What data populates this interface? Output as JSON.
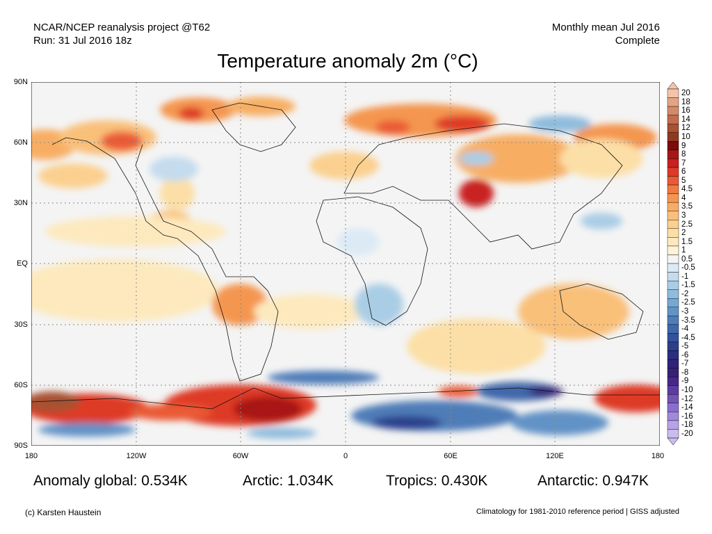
{
  "header": {
    "left_line1": "NCAR/NCEP reanalysis project @T62",
    "left_line2": "Run: 31 Jul 2016 18z",
    "right_line1": "Monthly mean Jul 2016",
    "right_line2": "Complete"
  },
  "title": "Temperature anomaly 2m (°C)",
  "axes": {
    "lat_labels": [
      "90N",
      "60N",
      "30N",
      "EQ",
      "30S",
      "60S",
      "90S"
    ],
    "lon_labels": [
      "180",
      "120W",
      "60W",
      "0",
      "60E",
      "120E",
      "180"
    ]
  },
  "colorbar": {
    "labels": [
      "20",
      "18",
      "16",
      "14",
      "12",
      "10",
      "9",
      "8",
      "7",
      "6",
      "5",
      "4.5",
      "4",
      "3.5",
      "3",
      "2.5",
      "2",
      "1.5",
      "1",
      "0.5",
      "-0.5",
      "-1",
      "-1.5",
      "-2",
      "-2.5",
      "-3",
      "-3.5",
      "-4",
      "-4.5",
      "-5",
      "-6",
      "-7",
      "-8",
      "-9",
      "-10",
      "-12",
      "-14",
      "-16",
      "-18",
      "-20"
    ],
    "colors": [
      "#f3c4ab",
      "#e3a384",
      "#d48a6a",
      "#c16c4c",
      "#a85133",
      "#8d3a20",
      "#7a0c0c",
      "#a81515",
      "#c92020",
      "#de3a28",
      "#ea5a34",
      "#f07a42",
      "#f49650",
      "#f7ae64",
      "#f9c07a",
      "#fbd08f",
      "#fcdfa6",
      "#fde9bd",
      "#fef3d6",
      "#f4f4f4",
      "#dbeaf5",
      "#c4dcee",
      "#aacde6",
      "#8fbcdd",
      "#76a8d3",
      "#6293c6",
      "#4f7db8",
      "#3f68aa",
      "#34529b",
      "#2b3f8c",
      "#2a2f80",
      "#2f2478",
      "#392077",
      "#482887",
      "#5c3c9e",
      "#7354b5",
      "#8a6ecb",
      "#a188db",
      "#b7a3e6",
      "#cbbcef"
    ]
  },
  "stats": {
    "global": "Anomaly global: 0.534K",
    "arctic": "Arctic: 1.034K",
    "tropics": "Tropics: 0.430K",
    "antarctic": "Antarctic: 0.947K"
  },
  "footer": {
    "credit": "(c) Karsten Haustein",
    "note": "Climatology for 1981-2010 reference period | GISS adjusted"
  }
}
